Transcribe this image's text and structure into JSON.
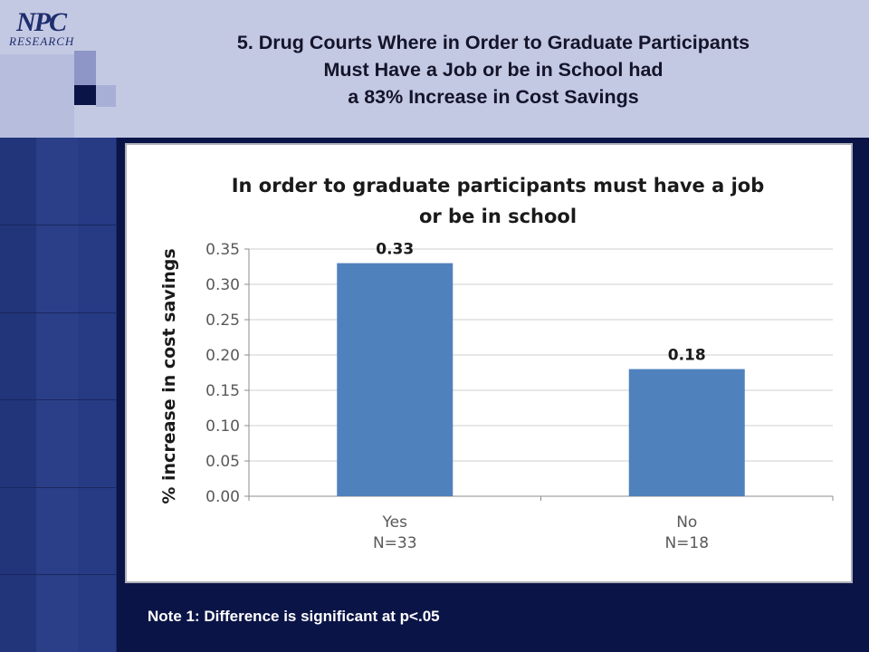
{
  "slide": {
    "logo_top": "NPC",
    "logo_bottom": "RESEARCH",
    "title_lines": [
      "5.   Drug Courts Where in Order to Graduate Participants",
      "Must Have a Job or be in School had",
      "a 83% Increase in Cost Savings"
    ],
    "note": "Note 1: Difference is significant at p<.05"
  },
  "colors": {
    "bar": "#4f81bd",
    "grid": "#cfcfcf",
    "axis_text": "#595959",
    "title_text": "#1a1a1a"
  },
  "chart_data": {
    "type": "bar",
    "title_lines": [
      "In order to graduate participants must have a job",
      "or be in school"
    ],
    "ylabel": "% increase in cost savings",
    "xlabel": "",
    "categories": [
      {
        "label": "Yes",
        "sublabel": "N=33"
      },
      {
        "label": "No",
        "sublabel": "N=18"
      }
    ],
    "values": [
      0.33,
      0.18
    ],
    "data_labels": [
      "0.33",
      "0.18"
    ],
    "ylim": [
      0,
      0.35
    ],
    "yticks": [
      "0.00",
      "0.05",
      "0.10",
      "0.15",
      "0.20",
      "0.25",
      "0.30",
      "0.35"
    ],
    "ytick_values": [
      0,
      0.05,
      0.1,
      0.15,
      0.2,
      0.25,
      0.3,
      0.35
    ],
    "grid": true,
    "legend": "none"
  }
}
